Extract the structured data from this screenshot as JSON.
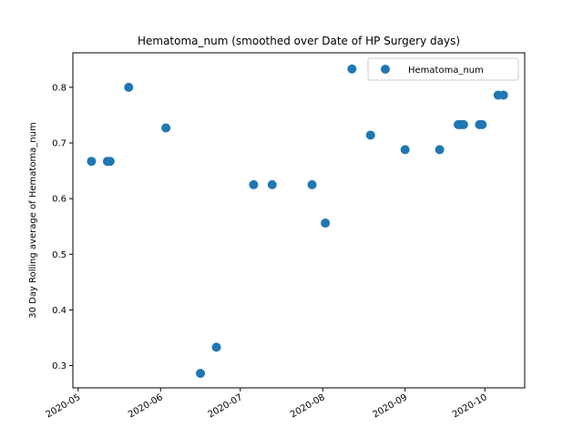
{
  "chart_data": {
    "type": "scatter",
    "title": "Hematoma_num (smoothed over Date of HP Surgery days)",
    "xlabel": "",
    "ylabel": "30 Day Rolling average of Hematoma_num",
    "xlim": [
      "2020-04-29",
      "2020-10-16"
    ],
    "ylim": [
      0.26,
      0.862
    ],
    "x_ticks": [
      "2020-05",
      "2020-06",
      "2020-07",
      "2020-08",
      "2020-09",
      "2020-10"
    ],
    "y_ticks": [
      0.3,
      0.4,
      0.5,
      0.6,
      0.7,
      0.8
    ],
    "grid": false,
    "legend_position": "top-right",
    "series": [
      {
        "name": "Hematoma_num",
        "color": "#1f77b4",
        "points": [
          {
            "x": "2020-05-06",
            "y": 0.667
          },
          {
            "x": "2020-05-12",
            "y": 0.667
          },
          {
            "x": "2020-05-13",
            "y": 0.667
          },
          {
            "x": "2020-05-20",
            "y": 0.8
          },
          {
            "x": "2020-06-03",
            "y": 0.727
          },
          {
            "x": "2020-06-16",
            "y": 0.286
          },
          {
            "x": "2020-06-22",
            "y": 0.333
          },
          {
            "x": "2020-07-06",
            "y": 0.625
          },
          {
            "x": "2020-07-13",
            "y": 0.625
          },
          {
            "x": "2020-07-28",
            "y": 0.625
          },
          {
            "x": "2020-08-02",
            "y": 0.556
          },
          {
            "x": "2020-08-12",
            "y": 0.833
          },
          {
            "x": "2020-08-19",
            "y": 0.714
          },
          {
            "x": "2020-09-01",
            "y": 0.688
          },
          {
            "x": "2020-09-14",
            "y": 0.688
          },
          {
            "x": "2020-09-21",
            "y": 0.733
          },
          {
            "x": "2020-09-22",
            "y": 0.733
          },
          {
            "x": "2020-09-23",
            "y": 0.733
          },
          {
            "x": "2020-09-29",
            "y": 0.733
          },
          {
            "x": "2020-09-30",
            "y": 0.733
          },
          {
            "x": "2020-10-06",
            "y": 0.786
          },
          {
            "x": "2020-10-08",
            "y": 0.786
          }
        ]
      }
    ]
  }
}
